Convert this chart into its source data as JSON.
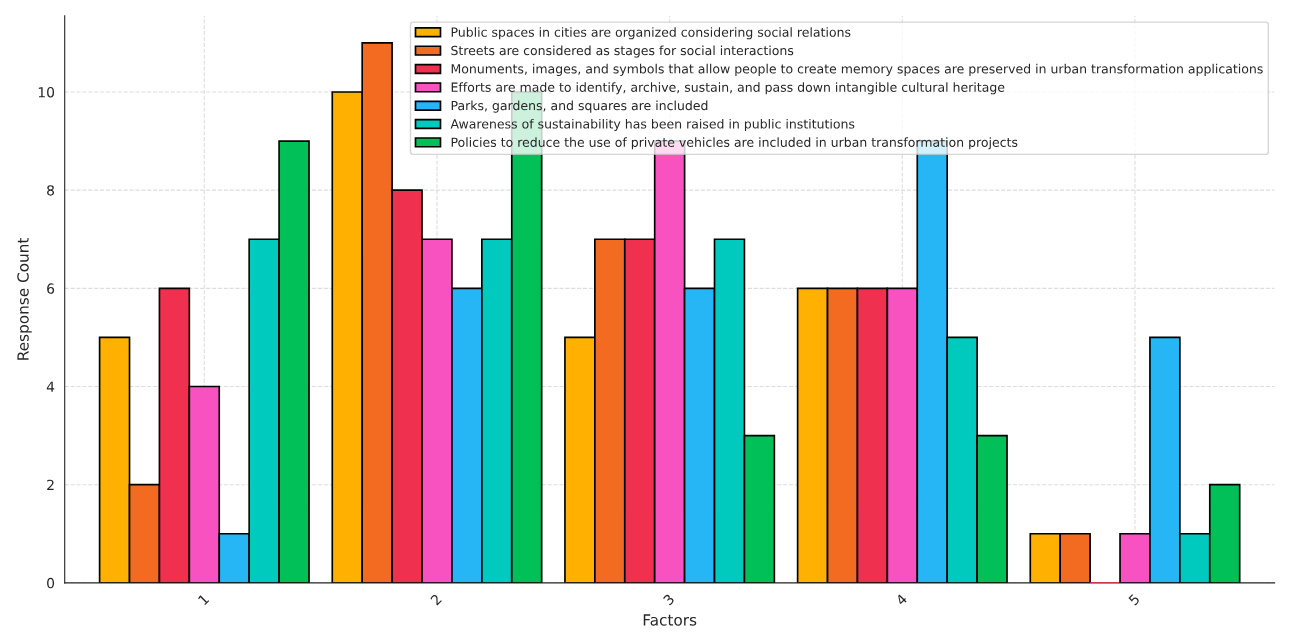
{
  "chart_data": {
    "type": "bar",
    "xlabel": "Factors",
    "ylabel": "Response Count",
    "categories": [
      "1",
      "2",
      "3",
      "4",
      "5"
    ],
    "series": [
      {
        "name": "Public spaces in cities are organized considering social relations",
        "color": "#ffb000",
        "values": [
          5,
          10,
          5,
          6,
          1
        ]
      },
      {
        "name": "Streets are considered as stages for social interactions",
        "color": "#f26b21",
        "values": [
          2,
          11,
          7,
          6,
          1
        ]
      },
      {
        "name": "Monuments, images, and symbols that allow people to create memory spaces are preserved in urban transformation applications",
        "color": "#f0304f",
        "values": [
          6,
          8,
          7,
          6,
          0
        ]
      },
      {
        "name": "Efforts are made to identify, archive, sustain, and pass down intangible cultural heritage",
        "color": "#f752c0",
        "values": [
          4,
          7,
          9,
          6,
          1
        ]
      },
      {
        "name": "Parks, gardens, and squares are included",
        "color": "#27b6f5",
        "values": [
          1,
          6,
          6,
          9,
          5
        ]
      },
      {
        "name": "Awareness of sustainability has been raised in public institutions",
        "color": "#00c9bd",
        "values": [
          7,
          7,
          7,
          5,
          1
        ]
      },
      {
        "name": "Policies to reduce the use of private vehicles are included in urban transformation projects",
        "color": "#00c057",
        "values": [
          9,
          10,
          3,
          3,
          2
        ]
      }
    ],
    "ylim": [
      0,
      11.55
    ],
    "yticks": [
      0,
      2,
      4,
      6,
      8,
      10
    ],
    "grid": true,
    "legend": "top right"
  }
}
